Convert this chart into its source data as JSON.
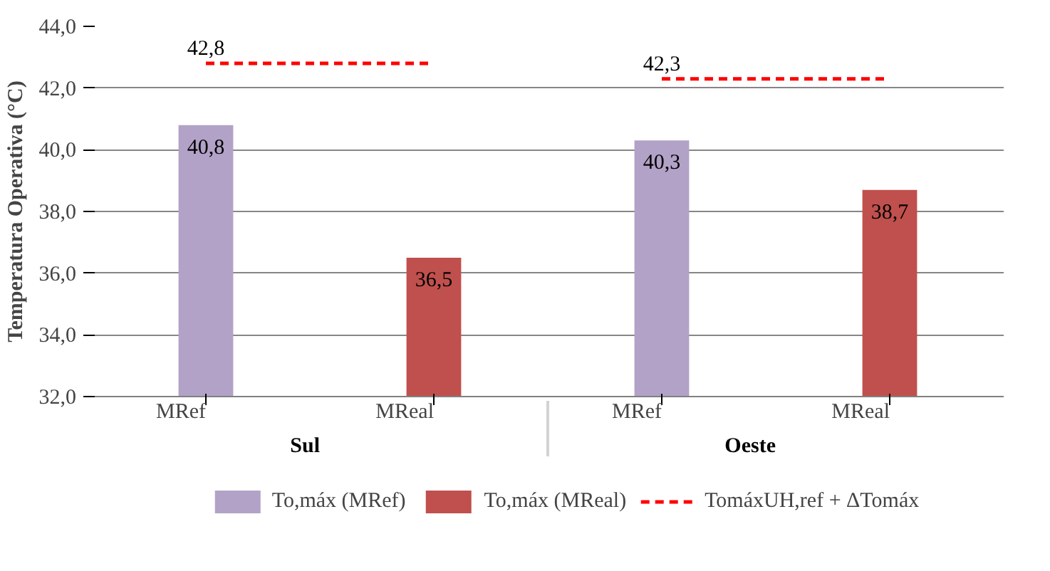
{
  "chart_data": {
    "type": "bar",
    "ylabel": "Temperatura Operativa (°C)",
    "categories": [
      "MRef",
      "MReal",
      "MRef",
      "MReal"
    ],
    "annotations": [
      "Sul",
      "Oeste"
    ],
    "series": [
      {
        "name": "To,máx (MRef)",
        "color": "#b2a2c7",
        "values": [
          40.8,
          null,
          40.3,
          null
        ],
        "value_labels": [
          "40,8",
          null,
          "40,3",
          null
        ]
      },
      {
        "name": "To,máx (MReal)",
        "color": "#c0504d",
        "values": [
          null,
          36.5,
          null,
          38.7
        ],
        "value_labels": [
          null,
          "36,5",
          null,
          "38,7"
        ]
      },
      {
        "name": "TomáxUH,ref + ΔTomáx",
        "type": "line",
        "line_style": "dashed",
        "color": "#ff0000",
        "values": [
          42.8,
          42.8,
          42.3,
          42.3
        ],
        "value_labels": [
          "42,8",
          null,
          "42,3",
          null
        ]
      }
    ],
    "ylim": [
      32,
      44
    ],
    "yticks": [
      {
        "value": 32,
        "label": "32,0"
      },
      {
        "value": 34,
        "label": "34,0"
      },
      {
        "value": 36,
        "label": "36,0"
      },
      {
        "value": 38,
        "label": "38,0"
      },
      {
        "value": 40,
        "label": "40,0"
      },
      {
        "value": 42,
        "label": "42,0"
      },
      {
        "value": 44,
        "label": "44,0"
      }
    ],
    "grid": "y",
    "legend": "bottom"
  }
}
